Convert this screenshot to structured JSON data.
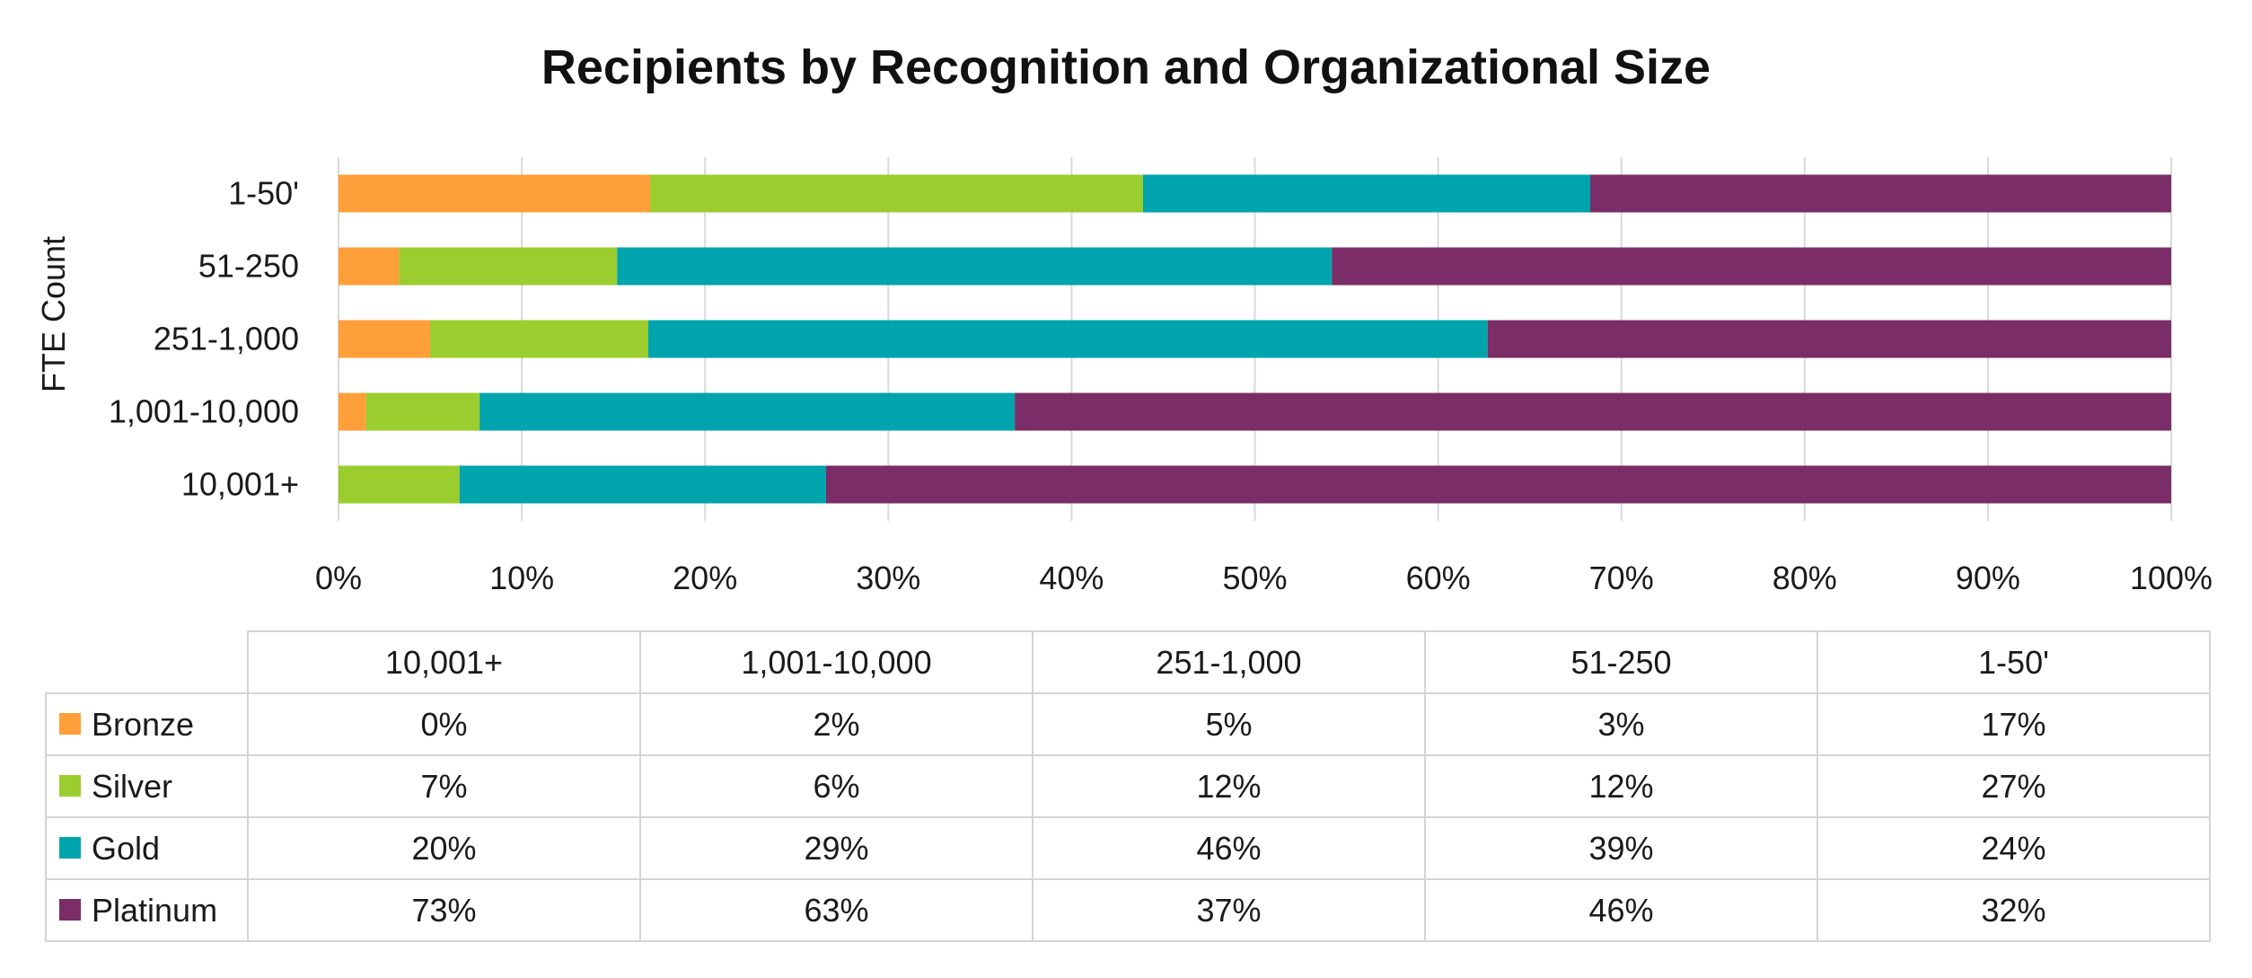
{
  "chart_data": {
    "type": "bar",
    "orientation": "horizontal",
    "stacked": "percent",
    "title": "Recipients by Recognition and Organizational Size",
    "ylabel": "FTE Count",
    "xlabel": "",
    "xlim": [
      0,
      100
    ],
    "x_ticks": [
      "0%",
      "10%",
      "20%",
      "30%",
      "40%",
      "50%",
      "60%",
      "70%",
      "80%",
      "90%",
      "100%"
    ],
    "grid": "vertical",
    "legend": "data-table",
    "categories": [
      "10,001+",
      "1,001-10,000",
      "251-1,000",
      "51-250",
      "1-50'"
    ],
    "series": [
      {
        "name": "Bronze",
        "color": "#FF9F3A",
        "values": [
          0,
          1.5,
          5,
          3.3,
          17
        ],
        "labels": [
          "0%",
          "2%",
          "5%",
          "3%",
          "17%"
        ]
      },
      {
        "name": "Silver",
        "color": "#9ACD2D",
        "values": [
          6.6,
          6.2,
          11.9,
          11.9,
          26.9
        ],
        "labels": [
          "7%",
          "6%",
          "12%",
          "12%",
          "27%"
        ]
      },
      {
        "name": "Gold",
        "color": "#00A4AC",
        "values": [
          20,
          29.2,
          45.8,
          39,
          24.4
        ],
        "labels": [
          "20%",
          "29%",
          "46%",
          "39%",
          "24%"
        ]
      },
      {
        "name": "Platinum",
        "color": "#7A2D66",
        "values": [
          73.4,
          63.1,
          37.3,
          45.8,
          31.7
        ],
        "labels": [
          "73%",
          "63%",
          "37%",
          "46%",
          "32%"
        ]
      }
    ]
  }
}
